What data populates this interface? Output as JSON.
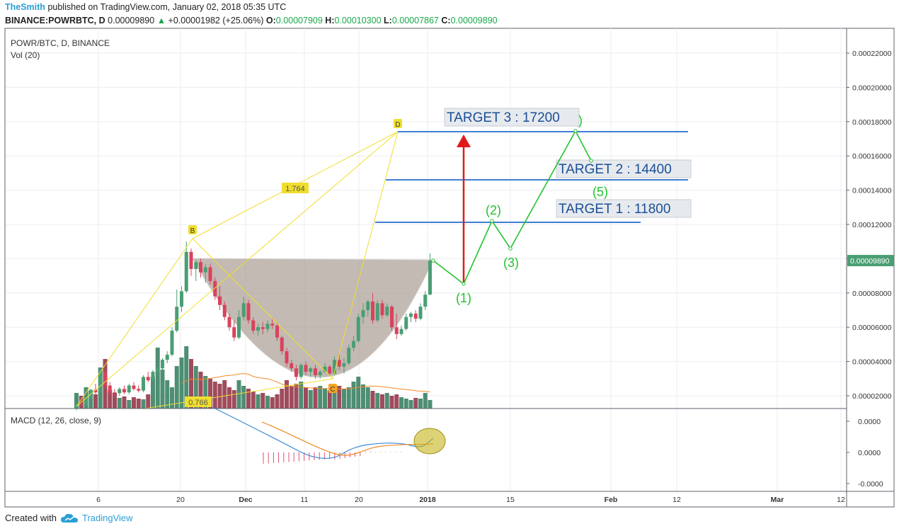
{
  "header": {
    "author": "TheSmith",
    "published": "published on TradingView.com, January 02, 2018 05:35 UTC",
    "symbol": "BINANCE:POWRBTC, D",
    "last": "0.00009890",
    "change": "+0.00001982 (+25.06%)",
    "open_label": "O:",
    "open": "0.00007909",
    "high_label": "H:",
    "high": "0.00010300",
    "low_label": "L:",
    "low": "0.00007867",
    "close_label": "C:",
    "close": "0.00009890"
  },
  "pane": {
    "title": "POWR/BTC, D, BINANCE",
    "vol_label": "Vol (20)",
    "macd_label": "MACD (12, 26, close, 9)"
  },
  "footer": {
    "created_with": "Created with",
    "brand": "TradingView"
  },
  "colors": {
    "up": "#4a9e73",
    "down": "#d9435c",
    "target_line": "#3f7fd4",
    "harmonic": "#f0de2e",
    "projection": "#22c22e",
    "arrow": "#e01a1a",
    "cup": "#a89c93",
    "macd": "#3a88d8",
    "signal": "#f08a24"
  },
  "chart_data": {
    "type": "candlestick",
    "price_axis": {
      "ticks": [
        "0.00022000",
        "0.00020000",
        "0.00018000",
        "0.00016000",
        "0.00014000",
        "0.00012000",
        "0.00010000",
        "0.00008000",
        "0.00006000",
        "0.00004000",
        "0.00002000"
      ],
      "current_price": "0.00009890"
    },
    "macd_axis": {
      "ticks": [
        "0.0000",
        "0.0000",
        "-0.0000"
      ]
    },
    "time_axis": [
      "6",
      "20",
      "Dec",
      "11",
      "20",
      "2018",
      "15",
      "Feb",
      "12",
      "Mar",
      "12"
    ],
    "candles": [
      {
        "o": 1.3,
        "h": 1.55,
        "l": 1.15,
        "c": 1.5
      },
      {
        "o": 1.5,
        "h": 1.75,
        "l": 1.35,
        "c": 1.45
      },
      {
        "o": 1.45,
        "h": 1.9,
        "l": 1.4,
        "c": 1.85
      },
      {
        "o": 1.85,
        "h": 2.4,
        "l": 1.8,
        "c": 2.35
      },
      {
        "o": 2.35,
        "h": 2.7,
        "l": 2.1,
        "c": 2.2
      },
      {
        "o": 2.2,
        "h": 3.5,
        "l": 2.1,
        "c": 3.4
      },
      {
        "o": 3.4,
        "h": 3.6,
        "l": 2.4,
        "c": 2.6
      },
      {
        "o": 2.6,
        "h": 2.8,
        "l": 2.0,
        "c": 2.2
      },
      {
        "o": 2.2,
        "h": 2.4,
        "l": 1.9,
        "c": 2.15
      },
      {
        "o": 2.15,
        "h": 2.5,
        "l": 2.0,
        "c": 2.4
      },
      {
        "o": 2.4,
        "h": 2.6,
        "l": 2.1,
        "c": 2.2
      },
      {
        "o": 2.2,
        "h": 2.7,
        "l": 2.1,
        "c": 2.6
      },
      {
        "o": 2.6,
        "h": 2.8,
        "l": 2.3,
        "c": 2.4
      },
      {
        "o": 2.4,
        "h": 2.6,
        "l": 2.2,
        "c": 2.3
      },
      {
        "o": 2.3,
        "h": 3.2,
        "l": 2.2,
        "c": 3.1
      },
      {
        "o": 3.1,
        "h": 3.4,
        "l": 2.8,
        "c": 2.9
      },
      {
        "o": 2.9,
        "h": 3.5,
        "l": 2.8,
        "c": 3.4
      },
      {
        "o": 3.4,
        "h": 3.8,
        "l": 3.2,
        "c": 3.6
      },
      {
        "o": 3.6,
        "h": 4.2,
        "l": 3.5,
        "c": 4.1
      },
      {
        "o": 4.1,
        "h": 4.6,
        "l": 3.9,
        "c": 4.4
      },
      {
        "o": 4.4,
        "h": 6.0,
        "l": 4.3,
        "c": 5.8
      },
      {
        "o": 5.8,
        "h": 8.2,
        "l": 5.7,
        "c": 7.2
      },
      {
        "o": 7.2,
        "h": 8.4,
        "l": 6.9,
        "c": 8.1
      },
      {
        "o": 8.1,
        "h": 11.0,
        "l": 8.0,
        "c": 10.4
      },
      {
        "o": 10.4,
        "h": 10.6,
        "l": 9.0,
        "c": 9.4
      },
      {
        "o": 9.4,
        "h": 9.9,
        "l": 8.7,
        "c": 9.8
      },
      {
        "o": 9.8,
        "h": 10.0,
        "l": 8.9,
        "c": 9.2
      },
      {
        "o": 9.2,
        "h": 9.7,
        "l": 8.6,
        "c": 9.5
      },
      {
        "o": 9.5,
        "h": 9.7,
        "l": 8.5,
        "c": 8.7
      },
      {
        "o": 8.7,
        "h": 8.9,
        "l": 7.6,
        "c": 7.8
      },
      {
        "o": 7.8,
        "h": 8.4,
        "l": 7.0,
        "c": 7.3
      },
      {
        "o": 7.3,
        "h": 7.5,
        "l": 6.4,
        "c": 6.6
      },
      {
        "o": 6.6,
        "h": 6.8,
        "l": 5.8,
        "c": 6.0
      },
      {
        "o": 6.0,
        "h": 6.4,
        "l": 5.2,
        "c": 5.4
      },
      {
        "o": 5.4,
        "h": 7.0,
        "l": 5.3,
        "c": 6.6
      },
      {
        "o": 6.6,
        "h": 7.8,
        "l": 6.4,
        "c": 7.4
      },
      {
        "o": 7.4,
        "h": 7.6,
        "l": 6.2,
        "c": 6.4
      },
      {
        "o": 6.4,
        "h": 6.6,
        "l": 5.6,
        "c": 5.8
      },
      {
        "o": 5.8,
        "h": 6.2,
        "l": 5.5,
        "c": 6.0
      },
      {
        "o": 6.0,
        "h": 6.3,
        "l": 5.6,
        "c": 5.9
      },
      {
        "o": 5.9,
        "h": 6.4,
        "l": 5.7,
        "c": 6.2
      },
      {
        "o": 6.2,
        "h": 6.5,
        "l": 5.9,
        "c": 6.1
      },
      {
        "o": 6.1,
        "h": 6.3,
        "l": 5.2,
        "c": 5.4
      },
      {
        "o": 5.4,
        "h": 5.5,
        "l": 4.4,
        "c": 4.6
      },
      {
        "o": 4.6,
        "h": 4.8,
        "l": 3.7,
        "c": 3.9
      },
      {
        "o": 3.9,
        "h": 4.1,
        "l": 3.4,
        "c": 3.6
      },
      {
        "o": 3.6,
        "h": 3.8,
        "l": 2.9,
        "c": 3.1
      },
      {
        "o": 3.1,
        "h": 3.9,
        "l": 3.0,
        "c": 3.8
      },
      {
        "o": 3.8,
        "h": 4.0,
        "l": 3.2,
        "c": 3.4
      },
      {
        "o": 3.4,
        "h": 3.7,
        "l": 3.1,
        "c": 3.6
      },
      {
        "o": 3.6,
        "h": 3.8,
        "l": 3.0,
        "c": 3.2
      },
      {
        "o": 3.2,
        "h": 3.5,
        "l": 3.0,
        "c": 3.4
      },
      {
        "o": 3.4,
        "h": 3.9,
        "l": 3.3,
        "c": 3.7
      },
      {
        "o": 3.7,
        "h": 3.8,
        "l": 3.2,
        "c": 3.3
      },
      {
        "o": 3.3,
        "h": 4.3,
        "l": 3.2,
        "c": 4.1
      },
      {
        "o": 4.1,
        "h": 4.5,
        "l": 3.5,
        "c": 3.7
      },
      {
        "o": 3.7,
        "h": 4.2,
        "l": 3.3,
        "c": 3.9
      },
      {
        "o": 3.9,
        "h": 5.0,
        "l": 3.8,
        "c": 4.8
      },
      {
        "o": 4.8,
        "h": 5.5,
        "l": 4.6,
        "c": 5.2
      },
      {
        "o": 5.2,
        "h": 6.8,
        "l": 5.1,
        "c": 6.6
      },
      {
        "o": 6.6,
        "h": 7.4,
        "l": 6.2,
        "c": 7.0
      },
      {
        "o": 7.0,
        "h": 7.6,
        "l": 6.6,
        "c": 7.5
      },
      {
        "o": 7.5,
        "h": 8.0,
        "l": 6.2,
        "c": 6.4
      },
      {
        "o": 6.4,
        "h": 7.6,
        "l": 6.3,
        "c": 7.4
      },
      {
        "o": 7.4,
        "h": 7.6,
        "l": 6.5,
        "c": 6.7
      },
      {
        "o": 6.7,
        "h": 7.4,
        "l": 6.6,
        "c": 7.2
      },
      {
        "o": 7.2,
        "h": 7.3,
        "l": 5.8,
        "c": 6.0
      },
      {
        "o": 6.0,
        "h": 6.8,
        "l": 5.3,
        "c": 5.6
      },
      {
        "o": 5.6,
        "h": 6.1,
        "l": 5.5,
        "c": 5.9
      },
      {
        "o": 5.9,
        "h": 6.8,
        "l": 5.8,
        "c": 6.6
      },
      {
        "o": 6.6,
        "h": 6.9,
        "l": 6.3,
        "c": 6.8
      },
      {
        "o": 6.8,
        "h": 7.0,
        "l": 6.3,
        "c": 6.5
      },
      {
        "o": 6.5,
        "h": 7.4,
        "l": 6.4,
        "c": 7.2
      },
      {
        "o": 7.2,
        "h": 8.1,
        "l": 7.0,
        "c": 7.9
      },
      {
        "o": 7.91,
        "h": 10.3,
        "l": 7.87,
        "c": 9.89
      }
    ],
    "candle_unit": "1e-5 BTC",
    "volume_relative": [
      0.22,
      0.18,
      0.3,
      0.25,
      0.2,
      0.58,
      0.7,
      0.26,
      0.22,
      0.15,
      0.17,
      0.12,
      0.16,
      0.14,
      0.13,
      0.2,
      0.45,
      0.86,
      0.55,
      0.4,
      0.3,
      0.6,
      0.72,
      0.88,
      0.7,
      0.6,
      0.52,
      0.46,
      0.42,
      0.38,
      0.35,
      0.4,
      0.3,
      0.26,
      0.4,
      0.32,
      0.28,
      0.24,
      0.2,
      0.22,
      0.18,
      0.16,
      0.2,
      0.28,
      0.4,
      0.32,
      0.35,
      0.38,
      0.3,
      0.26,
      0.3,
      0.32,
      0.28,
      0.26,
      0.28,
      0.32,
      0.28,
      0.3,
      0.38,
      0.45,
      0.34,
      0.3,
      0.25,
      0.22,
      0.2,
      0.22,
      0.18,
      0.2,
      0.16,
      0.14,
      0.12,
      0.15,
      0.14,
      0.22,
      0.12
    ],
    "annotations": {
      "harmonic_points": [
        "B",
        "C",
        "D"
      ],
      "ratios": [
        "1.764",
        "0.766"
      ],
      "targets": [
        {
          "label": "TARGET 3 : 17200",
          "price": 17200
        },
        {
          "label": "TARGET 2 : 14400",
          "price": 14400
        },
        {
          "label": "TARGET 1 : 11800",
          "price": 11800
        }
      ],
      "wave_labels": [
        "(1)",
        "(2)",
        "(3)",
        "(5)",
        ")"
      ]
    }
  }
}
